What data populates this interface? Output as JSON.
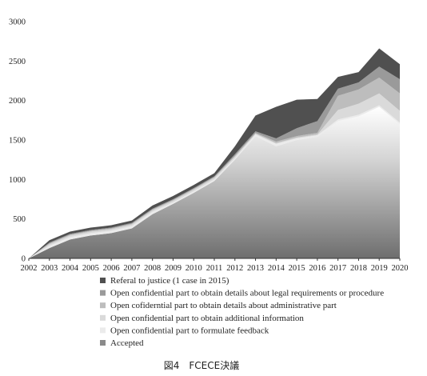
{
  "chart_data": {
    "type": "area",
    "stacked": true,
    "caption": "図4　FCECE決議",
    "x": [
      "2002",
      "2003",
      "2004",
      "2005",
      "2006",
      "2007",
      "2008",
      "2009",
      "2010",
      "2011",
      "2012",
      "2013",
      "2014",
      "2015",
      "2016",
      "2017",
      "2018",
      "2019",
      "2020"
    ],
    "ylim": [
      0,
      3000
    ],
    "yticks": [
      "0",
      "500",
      "1000",
      "1500",
      "2000",
      "2500",
      "3000"
    ],
    "grid": false,
    "legend_position": "bottom",
    "series": [
      {
        "name": "Accepted",
        "color": "#8a8a8a",
        "values": [
          0,
          130,
          240,
          290,
          320,
          380,
          560,
          690,
          830,
          980,
          1250,
          1550,
          1420,
          1500,
          1540,
          1740,
          1800,
          1920,
          1700
        ]
      },
      {
        "name": "Open confidential part to formulate feedback",
        "color": "#ebebeb",
        "values": [
          0,
          30,
          30,
          30,
          30,
          30,
          30,
          20,
          20,
          20,
          20,
          20,
          30,
          20,
          20,
          20,
          20,
          20,
          20
        ]
      },
      {
        "name": "Open confidential part to obtain additional information",
        "color": "#dadada",
        "values": [
          0,
          20,
          20,
          20,
          20,
          20,
          20,
          20,
          20,
          20,
          20,
          10,
          10,
          10,
          10,
          120,
          140,
          150,
          150
        ]
      },
      {
        "name": "Open cofiderntial part to obtain details about administrative part",
        "color": "#bdbdbd",
        "values": [
          0,
          10,
          10,
          10,
          10,
          10,
          10,
          10,
          10,
          10,
          10,
          10,
          20,
          20,
          20,
          180,
          180,
          200,
          220
        ]
      },
      {
        "name": "Open confidential part to obtain details about legal requirements or procedure",
        "color": "#9a9a9a",
        "values": [
          0,
          10,
          10,
          10,
          10,
          10,
          10,
          10,
          10,
          10,
          20,
          20,
          40,
          100,
          150,
          90,
          90,
          140,
          180
        ]
      },
      {
        "name": "Referal to justice (1 case in 2015)",
        "color": "#505050",
        "values": [
          0,
          30,
          30,
          30,
          30,
          30,
          40,
          40,
          40,
          40,
          100,
          200,
          400,
          360,
          280,
          150,
          130,
          230,
          190
        ]
      }
    ]
  }
}
